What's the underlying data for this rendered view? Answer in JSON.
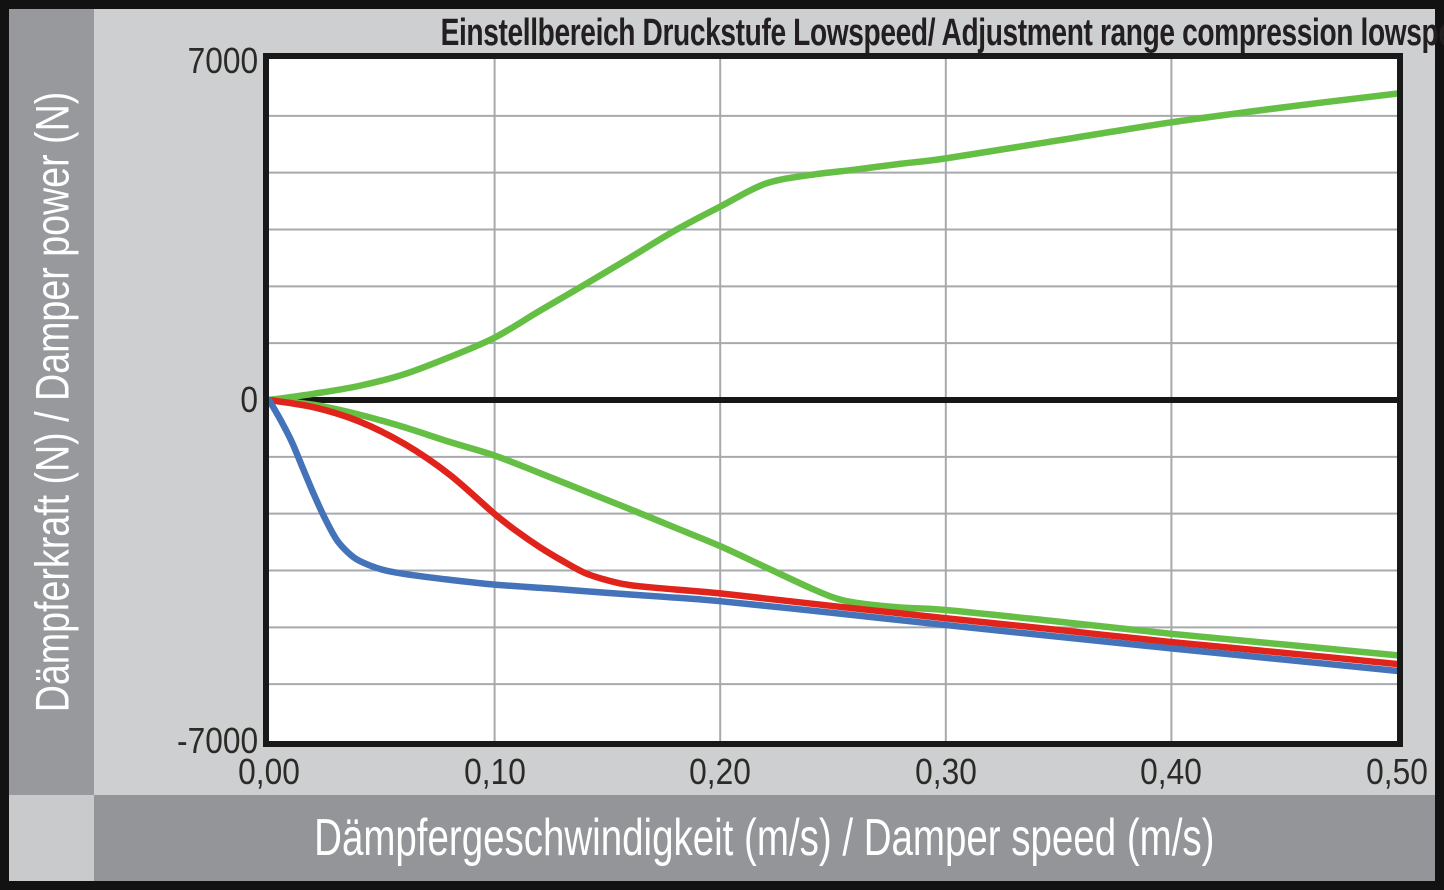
{
  "title": "Einstellbereich Druckstufe Lowspeed/ Adjustment range compression lowspeed",
  "y_axis_band": {
    "label": "Dämpferkraft (N) / Damper power (N)"
  },
  "x_axis_band": {
    "label": "Dämpfergeschwindigkeit (m/s) / Damper speed (m/s)"
  },
  "y_ticks": [
    "7000",
    "0",
    "-7000"
  ],
  "x_ticks": [
    "0,00",
    "0,10",
    "0,20",
    "0,30",
    "0,40",
    "0,50"
  ],
  "colors": {
    "outer_frame": "#121212",
    "background": "#cdcfd1",
    "left_band": "#97999c",
    "bottom_band": "#939598",
    "corner_square": "#c8cacc",
    "plot_background": "#ffffff",
    "plot_border": "#191919",
    "gridline": "#a7a9ac",
    "zero_axis": "#161616",
    "title_text": "#231f20",
    "tick_text": "#2b2a27",
    "band_text": "#ffffff",
    "green": "#66bf45",
    "red": "#e0241b",
    "blue": "#4473b9"
  },
  "chart_data": {
    "type": "line",
    "title": "Einstellbereich Druckstufe Lowspeed/ Adjustment range compression lowspeed",
    "xlabel": "Dämpfergeschwindigkeit (m/s) / Damper speed (m/s)",
    "ylabel": "Dämpferkraft (N) / Damper power (N)",
    "xlim": [
      0,
      0.5
    ],
    "ylim": [
      -7000,
      7000
    ],
    "x_divisions": 5,
    "y_divisions": 12,
    "grid": true,
    "legend": "none",
    "x_tick_labels": [
      "0,00",
      "0,10",
      "0,20",
      "0,30",
      "0,40",
      "0,50"
    ],
    "y_tick_labels": [
      "7000",
      "0",
      "-7000"
    ],
    "series": [
      {
        "name": "green-upper-adjustment-max",
        "color": "#66bf45",
        "points": [
          [
            0,
            0
          ],
          [
            0.02,
            130
          ],
          [
            0.04,
            290
          ],
          [
            0.06,
            530
          ],
          [
            0.08,
            880
          ],
          [
            0.1,
            1280
          ],
          [
            0.12,
            1830
          ],
          [
            0.14,
            2370
          ],
          [
            0.16,
            2920
          ],
          [
            0.18,
            3480
          ],
          [
            0.2,
            3970
          ],
          [
            0.22,
            4440
          ],
          [
            0.24,
            4620
          ],
          [
            0.26,
            4730
          ],
          [
            0.28,
            4850
          ],
          [
            0.3,
            4960
          ],
          [
            0.35,
            5330
          ],
          [
            0.4,
            5700
          ],
          [
            0.45,
            6010
          ],
          [
            0.5,
            6290
          ]
        ]
      },
      {
        "name": "green-lower-adjustment-min",
        "color": "#66bf45",
        "points": [
          [
            0,
            0
          ],
          [
            0.02,
            -100
          ],
          [
            0.04,
            -300
          ],
          [
            0.06,
            -560
          ],
          [
            0.08,
            -860
          ],
          [
            0.1,
            -1140
          ],
          [
            0.12,
            -1500
          ],
          [
            0.14,
            -1870
          ],
          [
            0.16,
            -2240
          ],
          [
            0.18,
            -2620
          ],
          [
            0.2,
            -3000
          ],
          [
            0.22,
            -3430
          ],
          [
            0.24,
            -3860
          ],
          [
            0.25,
            -4050
          ],
          [
            0.26,
            -4160
          ],
          [
            0.28,
            -4260
          ],
          [
            0.3,
            -4310
          ],
          [
            0.35,
            -4550
          ],
          [
            0.4,
            -4800
          ],
          [
            0.45,
            -5020
          ],
          [
            0.5,
            -5240
          ]
        ]
      },
      {
        "name": "red-setting",
        "color": "#e0241b",
        "points": [
          [
            0,
            0
          ],
          [
            0.02,
            -150
          ],
          [
            0.04,
            -440
          ],
          [
            0.06,
            -900
          ],
          [
            0.08,
            -1530
          ],
          [
            0.1,
            -2340
          ],
          [
            0.11,
            -2700
          ],
          [
            0.12,
            -3020
          ],
          [
            0.13,
            -3300
          ],
          [
            0.14,
            -3550
          ],
          [
            0.15,
            -3700
          ],
          [
            0.16,
            -3800
          ],
          [
            0.18,
            -3890
          ],
          [
            0.2,
            -3970
          ],
          [
            0.25,
            -4230
          ],
          [
            0.3,
            -4480
          ],
          [
            0.35,
            -4720
          ],
          [
            0.4,
            -4970
          ],
          [
            0.45,
            -5190
          ],
          [
            0.5,
            -5420
          ]
        ]
      },
      {
        "name": "blue-setting",
        "color": "#4473b9",
        "points": [
          [
            0,
            0
          ],
          [
            0.005,
            -400
          ],
          [
            0.01,
            -850
          ],
          [
            0.015,
            -1400
          ],
          [
            0.02,
            -1950
          ],
          [
            0.025,
            -2450
          ],
          [
            0.03,
            -2870
          ],
          [
            0.035,
            -3130
          ],
          [
            0.04,
            -3300
          ],
          [
            0.05,
            -3480
          ],
          [
            0.06,
            -3570
          ],
          [
            0.08,
            -3690
          ],
          [
            0.1,
            -3790
          ],
          [
            0.125,
            -3870
          ],
          [
            0.15,
            -3960
          ],
          [
            0.175,
            -4040
          ],
          [
            0.2,
            -4130
          ],
          [
            0.25,
            -4370
          ],
          [
            0.3,
            -4620
          ],
          [
            0.35,
            -4860
          ],
          [
            0.4,
            -5100
          ],
          [
            0.45,
            -5330
          ],
          [
            0.5,
            -5560
          ]
        ]
      }
    ]
  }
}
